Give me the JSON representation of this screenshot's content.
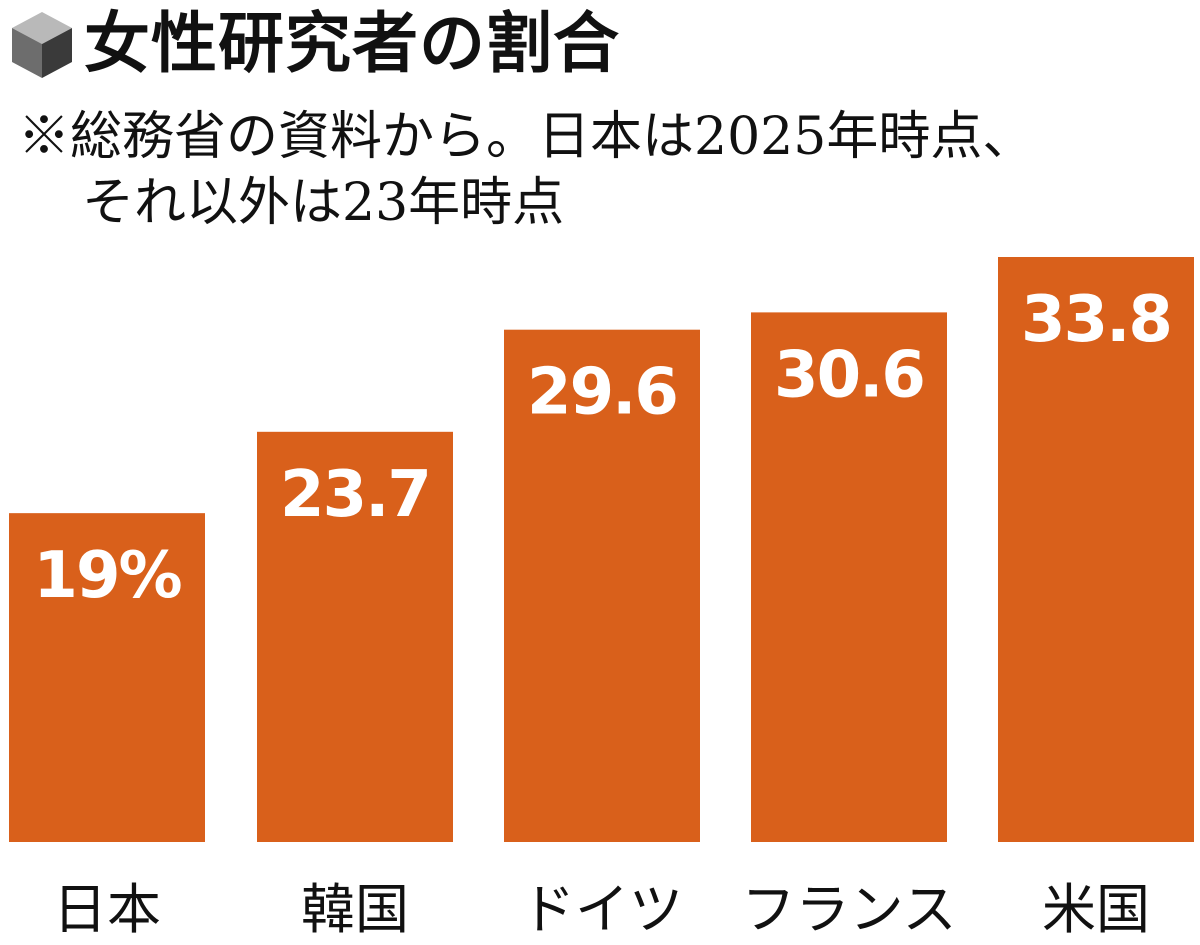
{
  "header": {
    "icon": "cube-icon",
    "title": "女性研究者の割合",
    "note_lines": [
      "※総務省の資料から。日本は2025年時点、",
      "それ以外は23年時点"
    ]
  },
  "colors": {
    "bar": "#d9601b",
    "value_label": "#ffffff",
    "text": "#111111",
    "icon_top": "#b9b9b9",
    "icon_left": "#6d6d6d",
    "icon_right": "#3a3a3a"
  },
  "chart_data": {
    "type": "bar",
    "title": "女性研究者の割合",
    "categories": [
      "日本",
      "韓国",
      "ドイツ",
      "フランス",
      "米国"
    ],
    "values": [
      19,
      23.7,
      29.6,
      30.6,
      33.8
    ],
    "value_labels": [
      "19%",
      "23.7",
      "29.6",
      "30.6",
      "33.8"
    ],
    "unit": "%",
    "xlabel": "",
    "ylabel": "",
    "ylim": [
      0,
      33.8
    ],
    "grid": false,
    "legend": "none"
  }
}
